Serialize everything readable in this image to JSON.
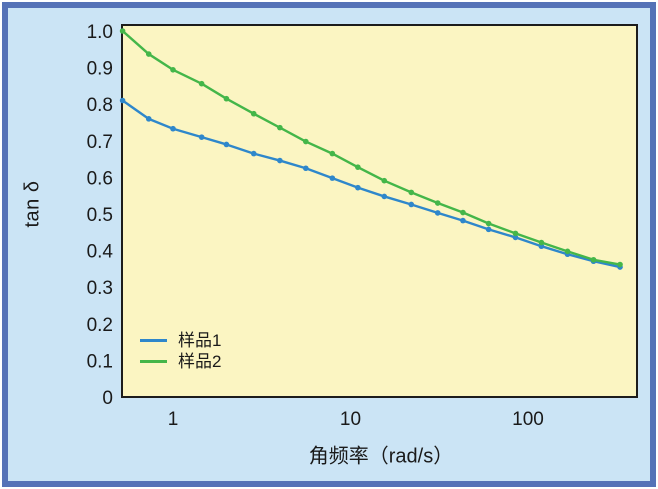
{
  "colors": {
    "frame_border": "#5572b7",
    "canvas_bg": "#cbe4f5",
    "plot_bg": "#fbf5c2",
    "axis_line": "#1c1c1c",
    "text": "#1a1a1a",
    "series1_blue": "#2e87cb",
    "series2_green": "#44b649"
  },
  "chart_data": {
    "type": "line",
    "title": "",
    "xlabel": "角频率（rad/s）",
    "ylabel": "tan δ",
    "xscale": "log",
    "xlim": [
      0.5,
      415
    ],
    "ylim": [
      0,
      1.0
    ],
    "grid": false,
    "legend_position": "lower-left",
    "xticks": [
      {
        "value": 1,
        "label": "1"
      },
      {
        "value": 10,
        "label": "10"
      },
      {
        "value": 100,
        "label": "100"
      }
    ],
    "yticks": [
      {
        "value": 1.0,
        "label": "1.0"
      },
      {
        "value": 0.9,
        "label": "0.9"
      },
      {
        "value": 0.8,
        "label": "0.8"
      },
      {
        "value": 0.7,
        "label": "0.7"
      },
      {
        "value": 0.6,
        "label": "0.6"
      },
      {
        "value": 0.5,
        "label": "0.5"
      },
      {
        "value": 0.4,
        "label": "0.4"
      },
      {
        "value": 0.3,
        "label": "0.3"
      },
      {
        "value": 0.2,
        "label": "0.2"
      },
      {
        "value": 0.1,
        "label": "0.1"
      },
      {
        "value": 0,
        "label": "0"
      }
    ],
    "x": [
      0.52,
      0.73,
      1.0,
      1.45,
      2.0,
      2.85,
      4.0,
      5.6,
      7.9,
      11,
      15.5,
      22,
      31,
      43,
      60,
      85,
      119,
      167,
      234,
      330
    ],
    "series": [
      {
        "name": "样品1",
        "color": "#2e87cb",
        "values": [
          0.81,
          0.76,
          0.733,
          0.71,
          0.69,
          0.665,
          0.646,
          0.625,
          0.598,
          0.572,
          0.548,
          0.526,
          0.503,
          0.482,
          0.458,
          0.436,
          0.412,
          0.39,
          0.371,
          0.355
        ]
      },
      {
        "name": "样品2",
        "color": "#44b649",
        "values": [
          1.0,
          0.937,
          0.894,
          0.856,
          0.815,
          0.774,
          0.736,
          0.698,
          0.665,
          0.628,
          0.591,
          0.559,
          0.53,
          0.504,
          0.474,
          0.447,
          0.422,
          0.398,
          0.375,
          0.362
        ]
      }
    ]
  }
}
